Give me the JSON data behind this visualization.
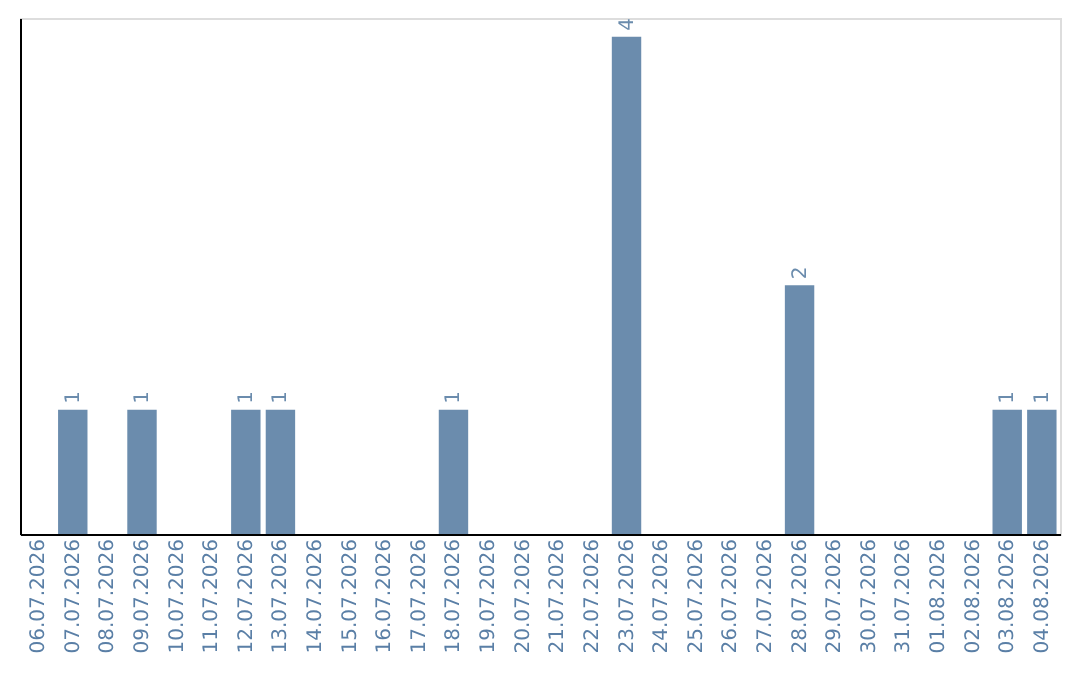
{
  "chart_data": {
    "type": "bar",
    "categories": [
      "06.07.2026",
      "07.07.2026",
      "08.07.2026",
      "09.07.2026",
      "10.07.2026",
      "11.07.2026",
      "12.07.2026",
      "13.07.2026",
      "14.07.2026",
      "15.07.2026",
      "16.07.2026",
      "17.07.2026",
      "18.07.2026",
      "19.07.2026",
      "20.07.2026",
      "21.07.2026",
      "22.07.2026",
      "23.07.2026",
      "24.07.2026",
      "25.07.2026",
      "26.07.2026",
      "27.07.2026",
      "28.07.2026",
      "29.07.2026",
      "30.07.2026",
      "31.07.2026",
      "01.08.2026",
      "02.08.2026",
      "03.08.2026",
      "04.08.2026"
    ],
    "values": [
      0,
      1,
      0,
      1,
      0,
      0,
      1,
      1,
      0,
      0,
      0,
      0,
      1,
      0,
      0,
      0,
      0,
      4,
      0,
      0,
      0,
      0,
      2,
      0,
      0,
      0,
      0,
      0,
      1,
      1
    ],
    "value_labels": [
      null,
      "1",
      null,
      "1",
      null,
      null,
      "1",
      "1",
      null,
      null,
      null,
      null,
      "1",
      null,
      null,
      null,
      null,
      "4",
      null,
      null,
      null,
      null,
      "2",
      null,
      null,
      null,
      null,
      null,
      "1",
      "1"
    ],
    "color": "#6b8cad",
    "ylim": [
      0,
      4.15
    ],
    "tick_labels": "x",
    "grid": false
  }
}
